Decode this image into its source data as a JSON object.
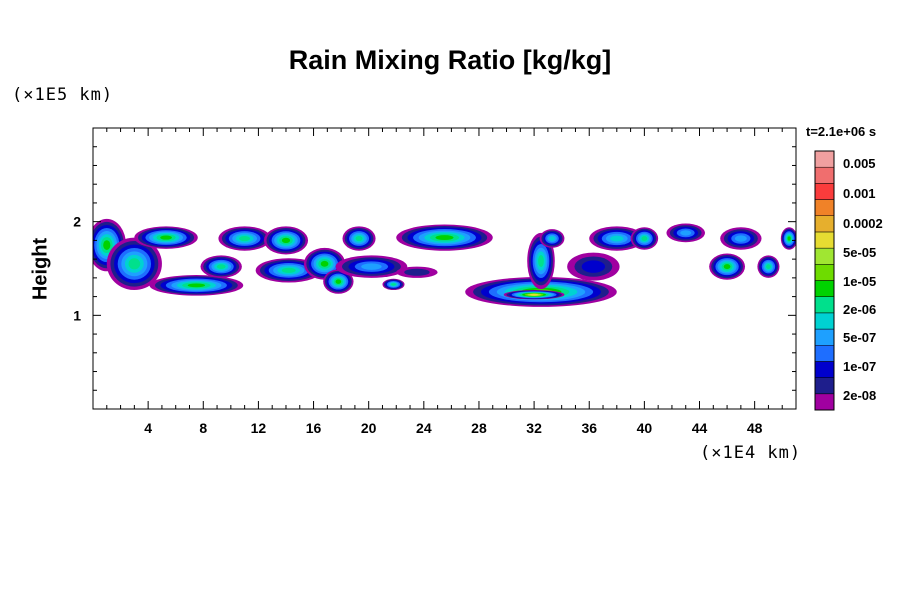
{
  "chart_data": {
    "type": "heatmap",
    "title": "Rain Mixing Ratio [kg/kg]",
    "ylabel": "Height",
    "xlabel": "",
    "x_unit_label": "(×1E4 km)",
    "y_unit_label": "(×1E5 km)",
    "xlim": [
      0,
      51
    ],
    "ylim": [
      0,
      3
    ],
    "x_ticks": [
      4,
      8,
      12,
      16,
      20,
      24,
      28,
      32,
      36,
      40,
      44,
      48
    ],
    "y_ticks": [
      1,
      2
    ],
    "colorbar": {
      "title": "t=2.1e+06 s",
      "labels": [
        "0.005",
        "0.001",
        "0.0002",
        "5e-05",
        "1e-05",
        "2e-06",
        "5e-07",
        "1e-07",
        "2e-08"
      ],
      "colors": [
        "#a000a0",
        "#1e1e8c",
        "#0000cd",
        "#1e6eff",
        "#1ea0ff",
        "#00d2d2",
        "#00e08c",
        "#00d200",
        "#6edc00",
        "#a0e632",
        "#e6dc32",
        "#e6af2d",
        "#f08228",
        "#fa3c3c",
        "#f06e6e",
        "#f0a0a0"
      ]
    },
    "cells": [
      {
        "x": 1.0,
        "y": 1.75,
        "rx": 1.4,
        "ry": 0.28,
        "level": 7
      },
      {
        "x": 3.0,
        "y": 1.55,
        "rx": 2.0,
        "ry": 0.28,
        "level": 6
      },
      {
        "x": 5.3,
        "y": 1.83,
        "rx": 2.3,
        "ry": 0.12,
        "level": 7
      },
      {
        "x": 7.5,
        "y": 1.32,
        "rx": 3.4,
        "ry": 0.11,
        "level": 7
      },
      {
        "x": 9.3,
        "y": 1.52,
        "rx": 1.5,
        "ry": 0.12,
        "level": 6
      },
      {
        "x": 11.0,
        "y": 1.82,
        "rx": 1.9,
        "ry": 0.13,
        "level": 6
      },
      {
        "x": 14.0,
        "y": 1.8,
        "rx": 1.6,
        "ry": 0.15,
        "level": 7
      },
      {
        "x": 14.2,
        "y": 1.48,
        "rx": 2.4,
        "ry": 0.13,
        "level": 6
      },
      {
        "x": 16.8,
        "y": 1.55,
        "rx": 1.5,
        "ry": 0.17,
        "level": 7
      },
      {
        "x": 17.8,
        "y": 1.36,
        "rx": 1.1,
        "ry": 0.13,
        "level": 7
      },
      {
        "x": 19.3,
        "y": 1.82,
        "rx": 1.2,
        "ry": 0.13,
        "level": 6
      },
      {
        "x": 20.2,
        "y": 1.52,
        "rx": 2.6,
        "ry": 0.12,
        "level": 4
      },
      {
        "x": 23.5,
        "y": 1.46,
        "rx": 1.5,
        "ry": 0.06,
        "level": 1
      },
      {
        "x": 21.8,
        "y": 1.33,
        "rx": 0.8,
        "ry": 0.06,
        "level": 6
      },
      {
        "x": 25.5,
        "y": 1.83,
        "rx": 3.5,
        "ry": 0.14,
        "level": 7
      },
      {
        "x": 32.5,
        "y": 1.25,
        "rx": 5.5,
        "ry": 0.16,
        "level": 8
      },
      {
        "x": 32.0,
        "y": 1.22,
        "rx": 2.2,
        "ry": 0.05,
        "level": 10
      },
      {
        "x": 32.5,
        "y": 1.58,
        "rx": 1.0,
        "ry": 0.3,
        "level": 6
      },
      {
        "x": 33.3,
        "y": 1.82,
        "rx": 0.9,
        "ry": 0.1,
        "level": 5
      },
      {
        "x": 36.3,
        "y": 1.52,
        "rx": 1.9,
        "ry": 0.15,
        "level": 2
      },
      {
        "x": 38.0,
        "y": 1.82,
        "rx": 2.0,
        "ry": 0.13,
        "level": 5
      },
      {
        "x": 40.0,
        "y": 1.82,
        "rx": 1.0,
        "ry": 0.12,
        "level": 6
      },
      {
        "x": 43.0,
        "y": 1.88,
        "rx": 1.4,
        "ry": 0.1,
        "level": 4
      },
      {
        "x": 47.0,
        "y": 1.82,
        "rx": 1.5,
        "ry": 0.12,
        "level": 4
      },
      {
        "x": 46.0,
        "y": 1.52,
        "rx": 1.3,
        "ry": 0.14,
        "level": 7
      },
      {
        "x": 49.0,
        "y": 1.52,
        "rx": 0.8,
        "ry": 0.12,
        "level": 6
      },
      {
        "x": 50.5,
        "y": 1.82,
        "rx": 0.6,
        "ry": 0.12,
        "level": 7
      }
    ]
  }
}
